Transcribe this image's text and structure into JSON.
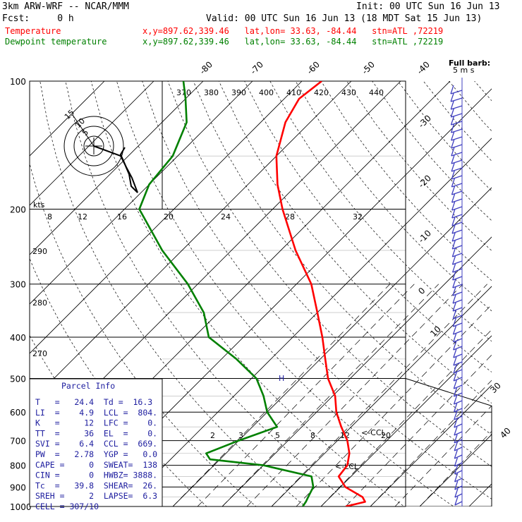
{
  "header": {
    "model": "3km ARW-WRF -- NCAR/MMM",
    "init": "Init: 00 UTC Sun 16 Jun 13",
    "fcst": "Fcst:     0 h",
    "valid": "Valid: 00 UTC Sun 16 Jun 13 (18 MDT Sat 15 Jun 13)",
    "temp_label": "Temperature",
    "dew_label": "Dewpoint temperature",
    "temp_info": "x,y=897.62,339.46   lat,lon= 33.63, -84.44   stn=ATL ,72219",
    "dew_info": "x,y=897.62,339.46   lat,lon= 33.63, -84.44   stn=ATL ,72219",
    "full_barb": "Full barb:",
    "full_barb_unit": "5 m s"
  },
  "colors": {
    "temperature": "#ff0000",
    "dewpoint": "#008000",
    "barbs": "#4040c0"
  },
  "chart_data": {
    "type": "skew-t",
    "pressure_levels": [
      100,
      200,
      300,
      400,
      500,
      600,
      700,
      800,
      900,
      1000
    ],
    "temp_ticks_top": [
      "-80",
      "-70",
      "-60",
      "-50",
      "-40"
    ],
    "temp_ticks_right": [
      "-30",
      "-20",
      "-10",
      "0",
      "10",
      "30",
      "40"
    ],
    "theta_labels": [
      "370",
      "380",
      "390",
      "400",
      "410",
      "420",
      "430",
      "440"
    ],
    "theta_labels_left": [
      "290",
      "280",
      "270"
    ],
    "mixing_ratio_labels": [
      "2",
      "3",
      "5",
      "8",
      "12",
      "20"
    ],
    "hodograph": {
      "units": "kts",
      "rings": [
        "5",
        "10",
        "15"
      ],
      "speed_ticks": [
        "8",
        "12",
        "16",
        "20",
        "24",
        "28",
        "32"
      ]
    },
    "annotations": {
      "ccl": "<-CCL",
      "lcl": "<-LCL",
      "h": "H"
    },
    "temperature": [
      {
        "p": 1000,
        "t": 25
      },
      {
        "p": 975,
        "t": 28
      },
      {
        "p": 950,
        "t": 26.5
      },
      {
        "p": 900,
        "t": 21
      },
      {
        "p": 850,
        "t": 17.5
      },
      {
        "p": 800,
        "t": 17
      },
      {
        "p": 750,
        "t": 15
      },
      {
        "p": 700,
        "t": 12
      },
      {
        "p": 650,
        "t": 8
      },
      {
        "p": 600,
        "t": 4
      },
      {
        "p": 550,
        "t": 0.5
      },
      {
        "p": 500,
        "t": -4.5
      },
      {
        "p": 450,
        "t": -9
      },
      {
        "p": 400,
        "t": -14
      },
      {
        "p": 350,
        "t": -20
      },
      {
        "p": 300,
        "t": -27
      },
      {
        "p": 250,
        "t": -37
      },
      {
        "p": 200,
        "t": -48
      },
      {
        "p": 175,
        "t": -54
      },
      {
        "p": 150,
        "t": -60
      },
      {
        "p": 125,
        "t": -65
      },
      {
        "p": 110,
        "t": -67
      },
      {
        "p": 100,
        "t": -66
      }
    ],
    "dewpoint": [
      {
        "p": 1000,
        "t": 16.3
      },
      {
        "p": 975,
        "t": 16
      },
      {
        "p": 950,
        "t": 15.5
      },
      {
        "p": 900,
        "t": 14.5
      },
      {
        "p": 850,
        "t": 12
      },
      {
        "p": 800,
        "t": 0
      },
      {
        "p": 775,
        "t": -12
      },
      {
        "p": 750,
        "t": -14
      },
      {
        "p": 700,
        "t": -10
      },
      {
        "p": 650,
        "t": -5
      },
      {
        "p": 600,
        "t": -10
      },
      {
        "p": 550,
        "t": -14
      },
      {
        "p": 500,
        "t": -19
      },
      {
        "p": 450,
        "t": -27
      },
      {
        "p": 400,
        "t": -37
      },
      {
        "p": 350,
        "t": -43
      },
      {
        "p": 300,
        "t": -52
      },
      {
        "p": 250,
        "t": -64
      },
      {
        "p": 200,
        "t": -77
      },
      {
        "p": 175,
        "t": -80
      },
      {
        "p": 150,
        "t": -81
      },
      {
        "p": 125,
        "t": -85
      },
      {
        "p": 110,
        "t": -90
      },
      {
        "p": 100,
        "t": -94
      }
    ]
  },
  "parcel_info": {
    "title": "Parcel Info",
    "rows": [
      "T   =   24.4  Td =  16.3",
      "LI  =    4.9  LCL =  804.",
      "K   =     12  LFC =    0.",
      "TT  =     36  EL  =    0.",
      "SVI =    6.4  CCL =  669.",
      "PW  =   2.78  YGP =   0.0",
      "CAPE =     0  SWEAT=  138",
      "CIN =      0  HWBZ= 3888.",
      "Tc  =   39.8  SHEAR=  26.",
      "SREH =     2  LAPSE=  6.3",
      "CELL = 307/10"
    ]
  }
}
